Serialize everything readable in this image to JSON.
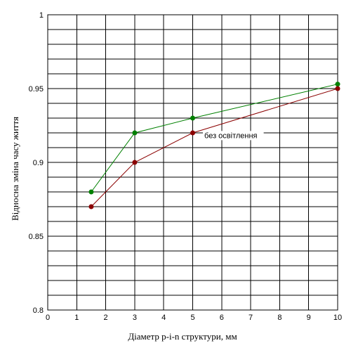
{
  "chart_data": {
    "type": "line",
    "xlabel": "Діаметр p-i-n структури, мм",
    "ylabel": "Відносна зміна часу життя",
    "xlim": [
      0,
      10
    ],
    "ylim": [
      0.8,
      1
    ],
    "x_ticks": [
      0,
      1,
      2,
      3,
      4,
      5,
      6,
      7,
      8,
      9,
      10
    ],
    "y_ticks": [
      0.8,
      0.85,
      0.9,
      0.95,
      1
    ],
    "y_tick_labels": [
      "0.8",
      "0.85",
      "0.9",
      "0.95",
      "1"
    ],
    "grid": true,
    "series": [
      {
        "color": "#008000",
        "x": [
          1.5,
          3,
          5,
          10
        ],
        "y": [
          0.88,
          0.92,
          0.93,
          0.953
        ]
      },
      {
        "name": "без освітлення",
        "color": "#8b0000",
        "x": [
          1.5,
          3,
          5,
          10
        ],
        "y": [
          0.87,
          0.9,
          0.92,
          0.95
        ]
      }
    ],
    "annotations": [
      {
        "text": "без освітлення",
        "x": 5.4,
        "y": 0.9165
      }
    ]
  }
}
